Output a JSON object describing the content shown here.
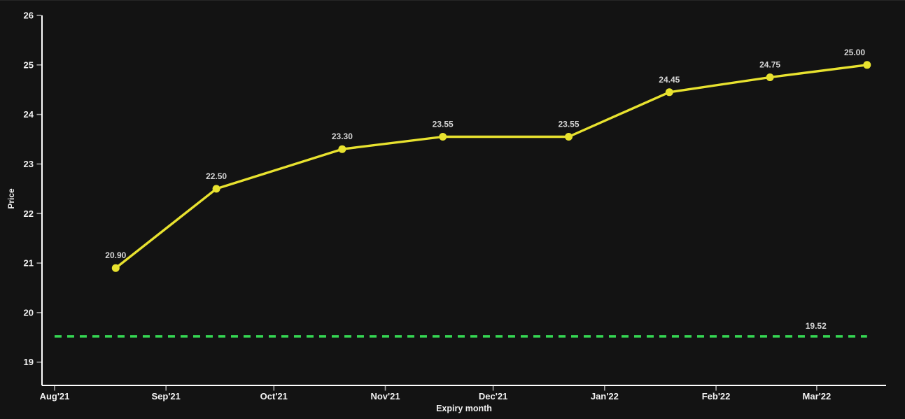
{
  "chart_data": {
    "type": "line",
    "title": "",
    "xlabel": "Expiry month",
    "ylabel": "Price",
    "grid": false,
    "legend": "none",
    "x_axis": {
      "tick_labels": [
        "Aug'21",
        "Sep'21",
        "Oct'21",
        "Nov'21",
        "Dec'21",
        "Jan'22",
        "Feb'22",
        "Mar'22"
      ],
      "tick_day_offsets": [
        0,
        31,
        61,
        92,
        122,
        153,
        184,
        212
      ],
      "range_days": [
        -3.5,
        231.3
      ]
    },
    "y_axis": {
      "tick_labels": [
        "19",
        "20",
        "21",
        "22",
        "23",
        "24",
        "25",
        "26"
      ],
      "tick_values": [
        19,
        20,
        21,
        22,
        23,
        24,
        25,
        26
      ],
      "range": [
        18.53,
        26.0
      ]
    },
    "series": [
      {
        "name": "futures-price-curve",
        "color": "#e8e22f",
        "marker": "circle",
        "points": [
          {
            "day": 17,
            "price": 20.9,
            "label": "20.90"
          },
          {
            "day": 45,
            "price": 22.5,
            "label": "22.50"
          },
          {
            "day": 80,
            "price": 23.3,
            "label": "23.30"
          },
          {
            "day": 108,
            "price": 23.55,
            "label": "23.55"
          },
          {
            "day": 143,
            "price": 23.55,
            "label": "23.55"
          },
          {
            "day": 171,
            "price": 24.45,
            "label": "24.45"
          },
          {
            "day": 199,
            "price": 24.75,
            "label": "24.75"
          },
          {
            "day": 226,
            "price": 25.0,
            "label": "25.00"
          }
        ]
      }
    ],
    "reference_line": {
      "value": 19.52,
      "label": "19.52",
      "color": "#35d653",
      "style": "dashed",
      "span_days": [
        0,
        226
      ]
    },
    "colors": {
      "background": "#131313",
      "axis": "#ffffff",
      "tick_mark": "#a8a8a8",
      "tick_text": "#f2f2f2",
      "point_label": "#d6d6d6",
      "axis_title": "#f0f0f0"
    }
  }
}
